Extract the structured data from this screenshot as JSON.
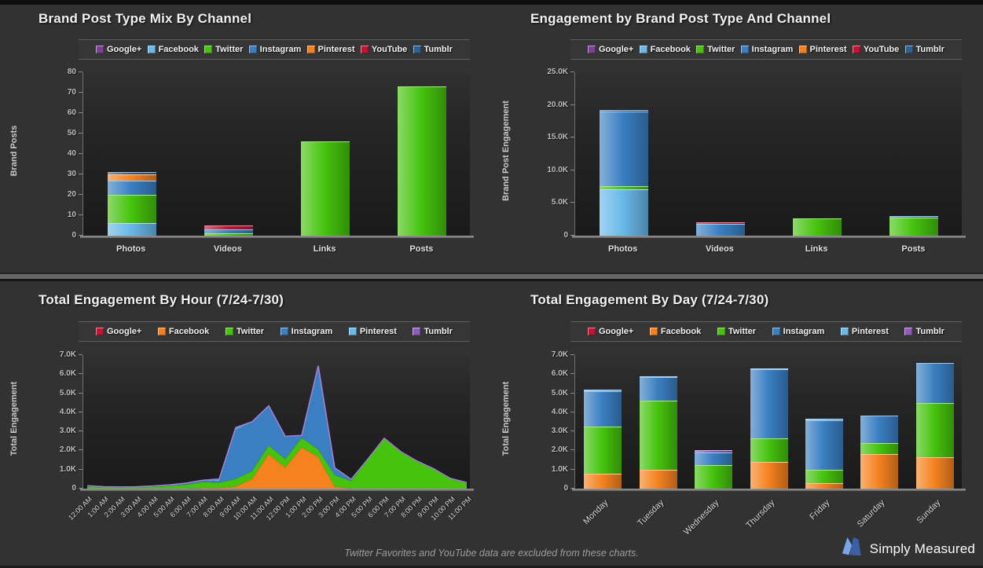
{
  "page": {
    "footer_note": "Twitter Favorites and YouTube data are excluded from these charts.",
    "brand": "Simply Measured"
  },
  "colors": {
    "background": "#323232",
    "plot_top": "#303030",
    "plot_bottom": "#1a1a1a",
    "separator": "#676767",
    "title_text": "#f2f2f2",
    "axis_text": "#bdbdbd",
    "logo_light_blue": "#7aa6e8",
    "logo_dark_blue": "#3d5fa5"
  },
  "chart_data": [
    {
      "type": "bar",
      "title": "Brand Post Type Mix By Channel",
      "ylabel": "Brand Posts",
      "ylim": [
        0,
        80
      ],
      "yticks": [
        "0",
        "10",
        "20",
        "30",
        "40",
        "50",
        "60",
        "70",
        "80"
      ],
      "categories": [
        "Photos",
        "Videos",
        "Links",
        "Posts"
      ],
      "legend": [
        "Google+",
        "Facebook",
        "Twitter",
        "Instagram",
        "Pinterest",
        "YouTube",
        "Tumblr"
      ],
      "xlabel_rotated": false,
      "series": [
        {
          "name": "Google+",
          "color": "#7d3f98",
          "values": [
            0,
            0,
            0,
            0
          ]
        },
        {
          "name": "Facebook",
          "color": "#68b8e9",
          "values": [
            6,
            0,
            0,
            0
          ]
        },
        {
          "name": "Twitter",
          "color": "#45c30d",
          "values": [
            14,
            1,
            46,
            73
          ]
        },
        {
          "name": "Instagram",
          "color": "#3a7fc2",
          "values": [
            7,
            2,
            0,
            0
          ]
        },
        {
          "name": "Pinterest",
          "color": "#f5821f",
          "values": [
            3,
            0,
            0,
            0
          ]
        },
        {
          "name": "YouTube",
          "color": "#c41232",
          "values": [
            0,
            2,
            0,
            0
          ]
        },
        {
          "name": "Tumblr",
          "color": "#2d6194",
          "values": [
            1,
            0,
            0,
            0
          ]
        }
      ]
    },
    {
      "type": "bar",
      "title": "Engagement by Brand Post Type And Channel",
      "ylabel": "Brand Post Engagement",
      "ylim": [
        0,
        25000
      ],
      "yticks": [
        "0",
        "5.0K",
        "10.0K",
        "15.0K",
        "20.0K",
        "25.0K"
      ],
      "categories": [
        "Photos",
        "Videos",
        "Links",
        "Posts"
      ],
      "legend": [
        "Google+",
        "Facebook",
        "Twitter",
        "Instagram",
        "Pinterest",
        "YouTube",
        "Tumblr"
      ],
      "xlabel_rotated": false,
      "series": [
        {
          "name": "Google+",
          "color": "#7d3f98",
          "values": [
            0,
            0,
            0,
            0
          ]
        },
        {
          "name": "Facebook",
          "color": "#68b8e9",
          "values": [
            7100,
            0,
            0,
            0
          ]
        },
        {
          "name": "Twitter",
          "color": "#45c30d",
          "values": [
            500,
            0,
            2600,
            2800
          ]
        },
        {
          "name": "Instagram",
          "color": "#3a7fc2",
          "values": [
            11400,
            1800,
            0,
            200
          ]
        },
        {
          "name": "Pinterest",
          "color": "#f5821f",
          "values": [
            0,
            0,
            0,
            0
          ]
        },
        {
          "name": "YouTube",
          "color": "#c41232",
          "values": [
            0,
            200,
            0,
            0
          ]
        },
        {
          "name": "Tumblr",
          "color": "#2d6194",
          "values": [
            200,
            0,
            0,
            0
          ]
        }
      ]
    },
    {
      "type": "area",
      "title": "Total Engagement By Hour (7/24-7/30)",
      "ylabel": "Total Engagement",
      "ylim": [
        0,
        7000
      ],
      "yticks": [
        "0",
        "1.0K",
        "2.0K",
        "3.0K",
        "4.0K",
        "5.0K",
        "6.0K",
        "7.0K"
      ],
      "categories": [
        "12:00 AM",
        "1:00 AM",
        "2:00 AM",
        "3:00 AM",
        "4:00 AM",
        "5:00 AM",
        "6:00 AM",
        "7:00 AM",
        "8:00 AM",
        "9:00 AM",
        "10:00 AM",
        "11:00 AM",
        "12:00 PM",
        "1:00 PM",
        "2:00 PM",
        "3:00 PM",
        "4:00 PM",
        "5:00 PM",
        "6:00 PM",
        "7:00 PM",
        "8:00 PM",
        "9:00 PM",
        "10:00 PM",
        "11:00 PM"
      ],
      "legend": [
        "Google+",
        "Facebook",
        "Twitter",
        "Instagram",
        "Pinterest",
        "Tumblr"
      ],
      "xlabel_rotated": true,
      "outline_color": "#a57fd0",
      "series": [
        {
          "name": "Google+",
          "color": "#c41232",
          "values": [
            0,
            0,
            0,
            0,
            0,
            0,
            0,
            0,
            0,
            0,
            0,
            0,
            0,
            0,
            0,
            0,
            0,
            0,
            0,
            0,
            0,
            0,
            0,
            0
          ]
        },
        {
          "name": "Facebook",
          "color": "#f5821f",
          "values": [
            0,
            0,
            0,
            0,
            0,
            0,
            0,
            20,
            30,
            100,
            500,
            1800,
            1100,
            2150,
            1650,
            100,
            0,
            0,
            0,
            0,
            0,
            0,
            0,
            0
          ]
        },
        {
          "name": "Twitter",
          "color": "#45c30d",
          "values": [
            100,
            60,
            50,
            60,
            90,
            140,
            200,
            320,
            280,
            400,
            420,
            450,
            450,
            500,
            400,
            600,
            400,
            1500,
            2600,
            1900,
            1400,
            1000,
            500,
            280
          ]
        },
        {
          "name": "Instagram",
          "color": "#3a7fc2",
          "values": [
            20,
            10,
            10,
            10,
            20,
            30,
            50,
            60,
            100,
            2600,
            2550,
            2050,
            1150,
            100,
            4350,
            350,
            50,
            0,
            0,
            0,
            0,
            0,
            0,
            0
          ]
        },
        {
          "name": "Pinterest",
          "color": "#68b8e9",
          "values": [
            0,
            0,
            0,
            0,
            0,
            0,
            0,
            0,
            60,
            60,
            0,
            0,
            0,
            0,
            0,
            0,
            0,
            0,
            0,
            0,
            0,
            0,
            0,
            0
          ]
        },
        {
          "name": "Tumblr",
          "color": "#8f5bc0",
          "values": [
            40,
            30,
            30,
            30,
            30,
            30,
            40,
            40,
            40,
            40,
            40,
            40,
            40,
            40,
            40,
            40,
            40,
            40,
            40,
            40,
            40,
            40,
            40,
            40
          ]
        }
      ]
    },
    {
      "type": "bar",
      "title": "Total Engagement By Day (7/24-7/30)",
      "ylabel": "Total Engagement",
      "ylim": [
        0,
        7000
      ],
      "yticks": [
        "0",
        "1.0K",
        "2.0K",
        "3.0K",
        "4.0K",
        "5.0K",
        "6.0K",
        "7.0K"
      ],
      "categories": [
        "Monday",
        "Tuesday",
        "Wednesday",
        "Thursday",
        "Friday",
        "Saturday",
        "Sunday"
      ],
      "legend": [
        "Google+",
        "Facebook",
        "Twitter",
        "Instagram",
        "Pinterest",
        "Tumblr"
      ],
      "xlabel_rotated": true,
      "series": [
        {
          "name": "Google+",
          "color": "#c41232",
          "values": [
            0,
            0,
            0,
            0,
            0,
            0,
            0
          ]
        },
        {
          "name": "Facebook",
          "color": "#f5821f",
          "values": [
            800,
            1000,
            20,
            1400,
            300,
            1800,
            1650
          ]
        },
        {
          "name": "Twitter",
          "color": "#45c30d",
          "values": [
            2450,
            3600,
            1230,
            1250,
            700,
            600,
            2850
          ]
        },
        {
          "name": "Instagram",
          "color": "#3a7fc2",
          "values": [
            1850,
            1250,
            650,
            3600,
            2600,
            1450,
            2100
          ]
        },
        {
          "name": "Pinterest",
          "color": "#68b8e9",
          "values": [
            100,
            50,
            0,
            50,
            50,
            0,
            0
          ]
        },
        {
          "name": "Tumblr",
          "color": "#8f5bc0",
          "values": [
            0,
            0,
            100,
            0,
            0,
            0,
            0
          ]
        }
      ]
    }
  ]
}
